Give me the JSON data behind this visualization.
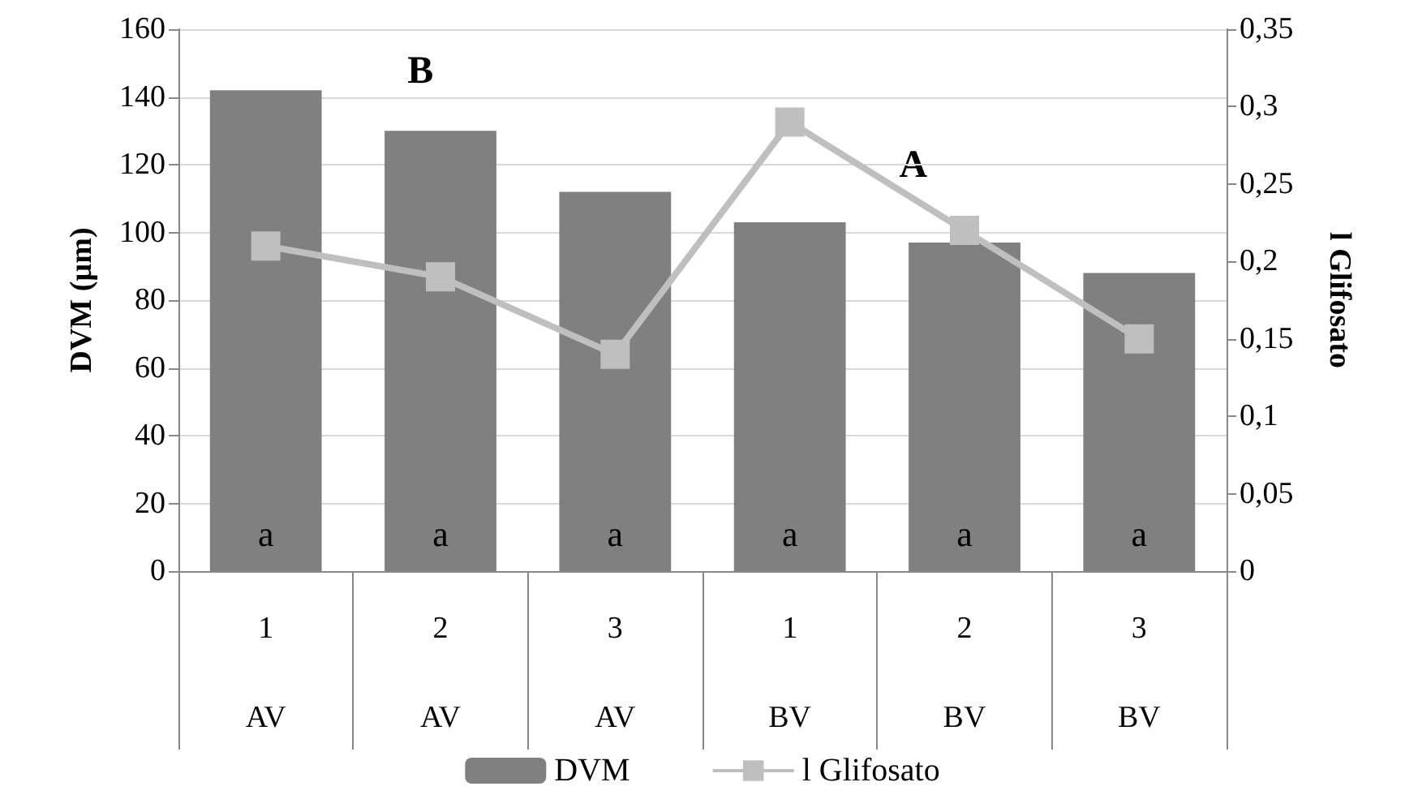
{
  "chart_data": {
    "type": "bar",
    "categories": [
      "1\nAV",
      "2\nAV",
      "3\nAV",
      "1\nBV",
      "2\nBV",
      "3\nBV"
    ],
    "series": [
      {
        "name": "DVM",
        "color": "#808080",
        "values": [
          142,
          130,
          112,
          103,
          97,
          88
        ],
        "value_labels": [
          "a",
          "a",
          "a",
          "a",
          "a",
          "a"
        ]
      },
      {
        "name": "l Glifosato",
        "type": "line",
        "axis": "y2",
        "color": "#bfbfbf",
        "values": [
          0.21,
          0.19,
          0.14,
          0.29,
          0.22,
          0.15
        ]
      }
    ],
    "ylabel": "DVM (µm)",
    "y2label": "l Glifosato",
    "ylim": [
      0,
      160
    ],
    "yticks": [
      0,
      20,
      40,
      60,
      80,
      100,
      120,
      140,
      160
    ],
    "y2lim": [
      0,
      0.35
    ],
    "y2ticks": [
      {
        "value": 0,
        "label": "0"
      },
      {
        "value": 0.05,
        "label": "0,05"
      },
      {
        "value": 0.1,
        "label": "0,1"
      },
      {
        "value": 0.15,
        "label": "0,15"
      },
      {
        "value": 0.2,
        "label": "0,2"
      },
      {
        "value": 0.25,
        "label": "0,25"
      },
      {
        "value": 0.3,
        "label": "0,3"
      },
      {
        "value": 0.35,
        "label": "0,35"
      }
    ],
    "annotations": [
      "B",
      "A"
    ],
    "grid": "y",
    "legend": "bottom",
    "marker": "square",
    "line_style": "solid"
  }
}
